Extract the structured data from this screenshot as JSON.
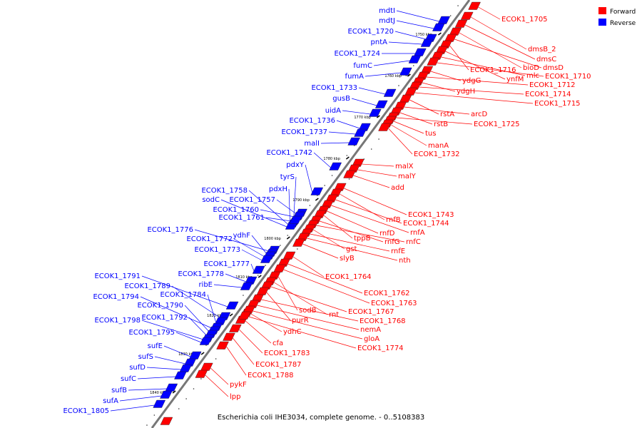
{
  "caption": "Escherichia coli IHE3034, complete genome. - 0..5108383",
  "colors": {
    "forward": "#ff0000",
    "reverse": "#0000ff",
    "backbone": "#777777"
  },
  "legend": [
    {
      "label": "Forward",
      "strand": "forward"
    },
    {
      "label": "Reverse",
      "strand": "reverse"
    }
  ],
  "ticks": [
    "1750 kbp",
    "1760 kbp",
    "1770 kbp",
    "1780 kbp",
    "1790 kbp",
    "1800 kbp",
    "1810 kbp",
    "1820 kbp",
    "1830 kbp",
    "1840 kbp"
  ],
  "reverse_genes": [
    "mdtI",
    "mdtJ",
    "ECOK1_1720",
    "pntA",
    "ECOK1_1724",
    "fumC",
    "fumA",
    "ECOK1_1733",
    "gusB",
    "uidA",
    "ECOK1_1736",
    "ECOK1_1737",
    "malI",
    "ECOK1_1742",
    "pdxY",
    "tyrS",
    "pdxH",
    "ECOK1_1758",
    "sodC",
    "ECOK1_1757",
    "ECOK1_1760",
    "ECOK1_1761",
    "ECOK1_1776",
    "ydhF",
    "ECOK1_1772",
    "ECOK1_1773",
    "ECOK1_1777",
    "ECOK1_1778",
    "ribE",
    "ECOK1_1791",
    "ECOK1_1789",
    "ECOK1_1784",
    "ECOK1_1794",
    "ECOK1_1790",
    "ECOK1_1792",
    "ECOK1_1798",
    "ECOK1_1795",
    "sufE",
    "sufS",
    "sufD",
    "sufC",
    "sufB",
    "sufA",
    "ECOK1_1805"
  ],
  "forward_genes": [
    "ECOK1_1705",
    "dmsB_2",
    "dmsC",
    "bioD",
    "dmsD",
    "ECOK1_1716",
    "ynfM",
    "mlc",
    "ECOK1_1710",
    "ydgG",
    "ECOK1_1712",
    "ydgH",
    "ECOK1_1714",
    "ECOK1_1715",
    "rstA",
    "arcD",
    "rstB",
    "ECOK1_1725",
    "tus",
    "manA",
    "ECOK1_1732",
    "malX",
    "malY",
    "add",
    "ECOK1_1743",
    "rnfB",
    "ECOK1_1744",
    "rnfA",
    "rnfD",
    "tppB",
    "rnfG",
    "rnfC",
    "gst",
    "rnfE",
    "nth",
    "slyB",
    "ECOK1_1764",
    "ECOK1_1762",
    "ECOK1_1763",
    "sodB",
    "rnt",
    "ECOK1_1767",
    "purR",
    "ECOK1_1768",
    "nemA",
    "ydhC",
    "gloA",
    "cfa",
    "ECOK1_1774",
    "ECOK1_1783",
    "ECOK1_1787",
    "ECOK1_1788",
    "pykF",
    "lpp"
  ]
}
